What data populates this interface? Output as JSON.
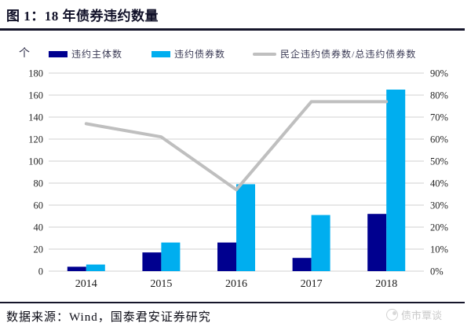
{
  "header": {
    "title": "图 1：18 年债券违约数量"
  },
  "chart_data": {
    "type": "bar",
    "subtype": "grouped-bars-with-line",
    "unit_label": "个",
    "categories": [
      "2014",
      "2015",
      "2016",
      "2017",
      "2018"
    ],
    "series": [
      {
        "name": "违约主体数",
        "type": "bar",
        "axis": "left",
        "color": "#00008F",
        "values": [
          4,
          17,
          26,
          12,
          52
        ]
      },
      {
        "name": "违约债券数",
        "type": "bar",
        "axis": "left",
        "color": "#00AEEF",
        "values": [
          6,
          26,
          79,
          51,
          165
        ]
      },
      {
        "name": "民企违约债券数/总违约债券数",
        "type": "line",
        "axis": "right",
        "color": "#BFBFBF",
        "values": [
          67,
          61,
          37,
          77,
          77
        ]
      }
    ],
    "left_axis": {
      "min": 0,
      "max": 180,
      "step": 20,
      "ticks": [
        "180",
        "160",
        "140",
        "120",
        "100",
        "80",
        "60",
        "40",
        "20",
        "0"
      ]
    },
    "right_axis": {
      "min": 0,
      "max": 90,
      "step": 10,
      "ticks": [
        "90%",
        "80%",
        "70%",
        "60%",
        "50%",
        "40%",
        "30%",
        "20%",
        "10%",
        "0%"
      ]
    },
    "grid": {
      "visible": true,
      "color": "#D9D9D9"
    },
    "legend_position": "top"
  },
  "footer": {
    "source": "数据来源：Wind，国泰君安证券研究",
    "watermark": "债市覃谈"
  }
}
